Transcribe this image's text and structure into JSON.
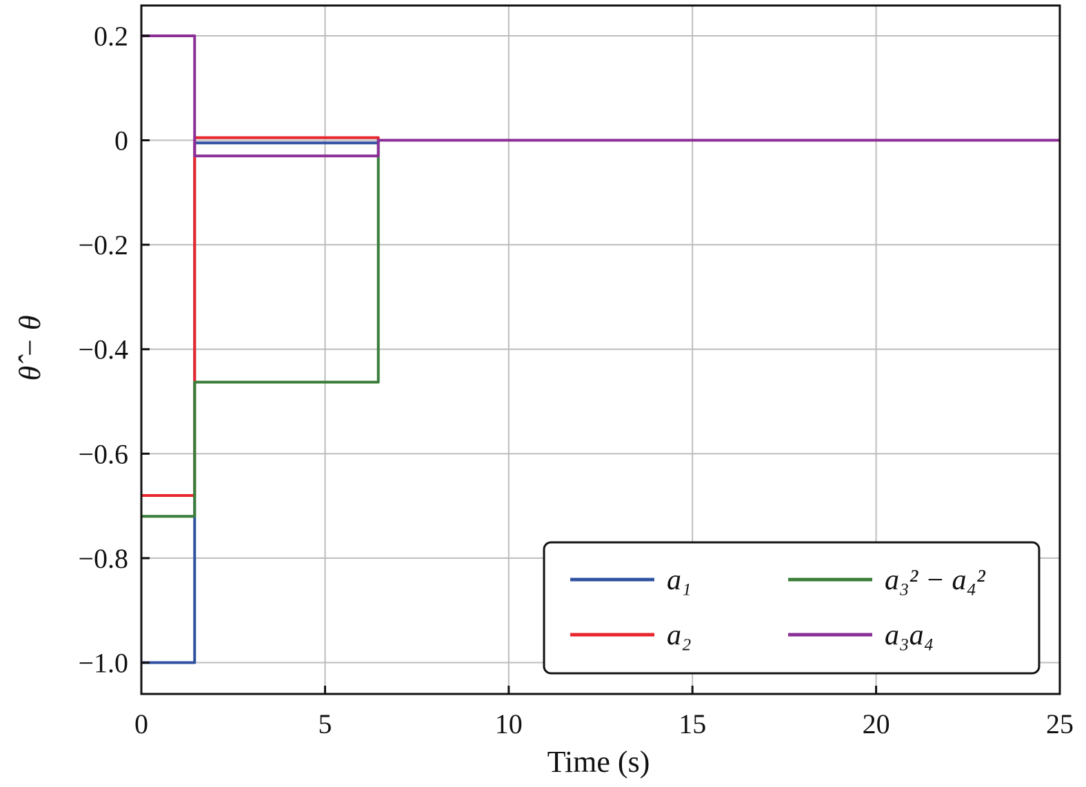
{
  "chart_data": {
    "type": "line",
    "title": "",
    "xlabel": "Time (s)",
    "ylabel": "θ̂ − θ",
    "xlim": [
      0,
      25
    ],
    "ylim": [
      -1.06,
      0.258
    ],
    "grid": true,
    "legend_position": "bottom-right",
    "legend_columns": 2,
    "xticks": [
      0,
      5,
      10,
      15,
      20,
      25
    ],
    "xtick_labels": [
      "0",
      "5",
      "10",
      "15",
      "20",
      "25"
    ],
    "yticks": [
      0.2,
      0,
      -0.2,
      -0.4,
      -0.6,
      -0.8,
      -1.0
    ],
    "ytick_labels": [
      "0.2",
      "0",
      "−0.2",
      "−0.4",
      "−0.6",
      "−0.8",
      "−1.0"
    ],
    "series": [
      {
        "name": "a₁",
        "color": "#3050a0",
        "step_x": [
          0,
          1.45,
          6.45,
          25
        ],
        "values": [
          -1.0,
          -0.005,
          0.0
        ]
      },
      {
        "name": "a₂",
        "color": "#e8262d",
        "step_x": [
          0,
          1.45,
          6.45,
          25
        ],
        "values": [
          -0.68,
          0.005,
          0.0
        ]
      },
      {
        "name": "a₃² − a₄²",
        "color": "#3a7d3a",
        "step_x": [
          0,
          1.45,
          6.45,
          25
        ],
        "values": [
          -0.72,
          -0.463,
          0.0
        ]
      },
      {
        "name": "a₃a₄",
        "color": "#8b2f96",
        "step_x": [
          0,
          1.45,
          6.45,
          25
        ],
        "values": [
          0.2,
          -0.03,
          0.0
        ]
      }
    ]
  }
}
